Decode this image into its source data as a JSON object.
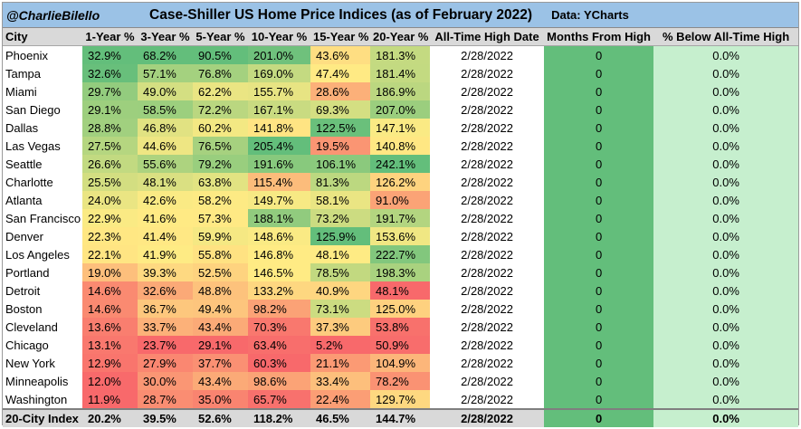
{
  "header": {
    "handle": "@CharlieBilello",
    "title": "Case-Shiller US Home Price Indices (as of February 2022)",
    "source": "Data: YCharts"
  },
  "colors": {
    "header_bg": "#9bc2e6",
    "column_header_bg": "#d9d9d9",
    "scale_low": "#f8696b",
    "scale_mid": "#ffeb84",
    "scale_high": "#63be7b",
    "months_bg": "#63be7b",
    "below_bg": "#c6efce"
  },
  "chart_data": {
    "type": "table",
    "title": "Case-Shiller US Home Price Indices (as of February 2022)",
    "columns": [
      "City",
      "1-Year %",
      "3-Year %",
      "5-Year %",
      "10-Year %",
      "15-Year %",
      "20-Year %",
      "All-Time High Date",
      "Months From High",
      "% Below All-Time High"
    ],
    "rows": [
      {
        "city": "Phoenix",
        "values": [
          "32.9%",
          "68.2%",
          "90.5%",
          "201.0%",
          "43.6%",
          "181.3%"
        ],
        "ath_date": "2/28/2022",
        "months": "0",
        "below": "0.0%"
      },
      {
        "city": "Tampa",
        "values": [
          "32.6%",
          "57.1%",
          "76.8%",
          "169.0%",
          "47.4%",
          "181.4%"
        ],
        "ath_date": "2/28/2022",
        "months": "0",
        "below": "0.0%"
      },
      {
        "city": "Miami",
        "values": [
          "29.7%",
          "49.0%",
          "62.2%",
          "155.7%",
          "28.6%",
          "186.9%"
        ],
        "ath_date": "2/28/2022",
        "months": "0",
        "below": "0.0%"
      },
      {
        "city": "San Diego",
        "values": [
          "29.1%",
          "58.5%",
          "72.2%",
          "167.1%",
          "69.3%",
          "207.0%"
        ],
        "ath_date": "2/28/2022",
        "months": "0",
        "below": "0.0%"
      },
      {
        "city": "Dallas",
        "values": [
          "28.8%",
          "46.8%",
          "60.2%",
          "141.8%",
          "122.5%",
          "147.1%"
        ],
        "ath_date": "2/28/2022",
        "months": "0",
        "below": "0.0%"
      },
      {
        "city": "Las Vegas",
        "values": [
          "27.5%",
          "44.6%",
          "76.5%",
          "205.4%",
          "19.5%",
          "140.8%"
        ],
        "ath_date": "2/28/2022",
        "months": "0",
        "below": "0.0%"
      },
      {
        "city": "Seattle",
        "values": [
          "26.6%",
          "55.6%",
          "79.2%",
          "191.6%",
          "106.1%",
          "242.1%"
        ],
        "ath_date": "2/28/2022",
        "months": "0",
        "below": "0.0%"
      },
      {
        "city": "Charlotte",
        "values": [
          "25.5%",
          "48.1%",
          "63.8%",
          "115.4%",
          "81.3%",
          "126.2%"
        ],
        "ath_date": "2/28/2022",
        "months": "0",
        "below": "0.0%"
      },
      {
        "city": "Atlanta",
        "values": [
          "24.0%",
          "42.6%",
          "58.2%",
          "149.7%",
          "58.1%",
          "91.0%"
        ],
        "ath_date": "2/28/2022",
        "months": "0",
        "below": "0.0%"
      },
      {
        "city": "San Francisco",
        "values": [
          "22.9%",
          "41.6%",
          "57.3%",
          "188.1%",
          "73.2%",
          "191.7%"
        ],
        "ath_date": "2/28/2022",
        "months": "0",
        "below": "0.0%"
      },
      {
        "city": "Denver",
        "values": [
          "22.3%",
          "41.4%",
          "59.9%",
          "148.6%",
          "125.9%",
          "153.6%"
        ],
        "ath_date": "2/28/2022",
        "months": "0",
        "below": "0.0%"
      },
      {
        "city": "Los Angeles",
        "values": [
          "22.1%",
          "41.9%",
          "55.8%",
          "146.8%",
          "48.1%",
          "222.7%"
        ],
        "ath_date": "2/28/2022",
        "months": "0",
        "below": "0.0%"
      },
      {
        "city": "Portland",
        "values": [
          "19.0%",
          "39.3%",
          "52.5%",
          "146.5%",
          "78.5%",
          "198.3%"
        ],
        "ath_date": "2/28/2022",
        "months": "0",
        "below": "0.0%"
      },
      {
        "city": "Detroit",
        "values": [
          "14.6%",
          "32.6%",
          "48.8%",
          "133.2%",
          "40.9%",
          "48.1%"
        ],
        "ath_date": "2/28/2022",
        "months": "0",
        "below": "0.0%"
      },
      {
        "city": "Boston",
        "values": [
          "14.6%",
          "36.7%",
          "49.4%",
          "98.2%",
          "73.1%",
          "125.0%"
        ],
        "ath_date": "2/28/2022",
        "months": "0",
        "below": "0.0%"
      },
      {
        "city": "Cleveland",
        "values": [
          "13.6%",
          "33.7%",
          "43.4%",
          "70.3%",
          "37.3%",
          "53.8%"
        ],
        "ath_date": "2/28/2022",
        "months": "0",
        "below": "0.0%"
      },
      {
        "city": "Chicago",
        "values": [
          "13.1%",
          "23.7%",
          "29.1%",
          "63.4%",
          "5.2%",
          "50.9%"
        ],
        "ath_date": "2/28/2022",
        "months": "0",
        "below": "0.0%"
      },
      {
        "city": "New York",
        "values": [
          "12.9%",
          "27.9%",
          "37.7%",
          "60.3%",
          "21.1%",
          "104.9%"
        ],
        "ath_date": "2/28/2022",
        "months": "0",
        "below": "0.0%"
      },
      {
        "city": "Minneapolis",
        "values": [
          "12.0%",
          "30.0%",
          "43.4%",
          "98.6%",
          "33.4%",
          "78.2%"
        ],
        "ath_date": "2/28/2022",
        "months": "0",
        "below": "0.0%"
      },
      {
        "city": "Washington",
        "values": [
          "11.9%",
          "28.7%",
          "35.0%",
          "65.7%",
          "22.4%",
          "129.7%"
        ],
        "ath_date": "2/28/2022",
        "months": "0",
        "below": "0.0%"
      }
    ],
    "footer": {
      "city": "20-City Index",
      "values": [
        "20.2%",
        "39.5%",
        "52.6%",
        "118.2%",
        "46.5%",
        "144.7%"
      ],
      "ath_date": "2/28/2022",
      "months": "0",
      "below": "0.0%"
    }
  }
}
